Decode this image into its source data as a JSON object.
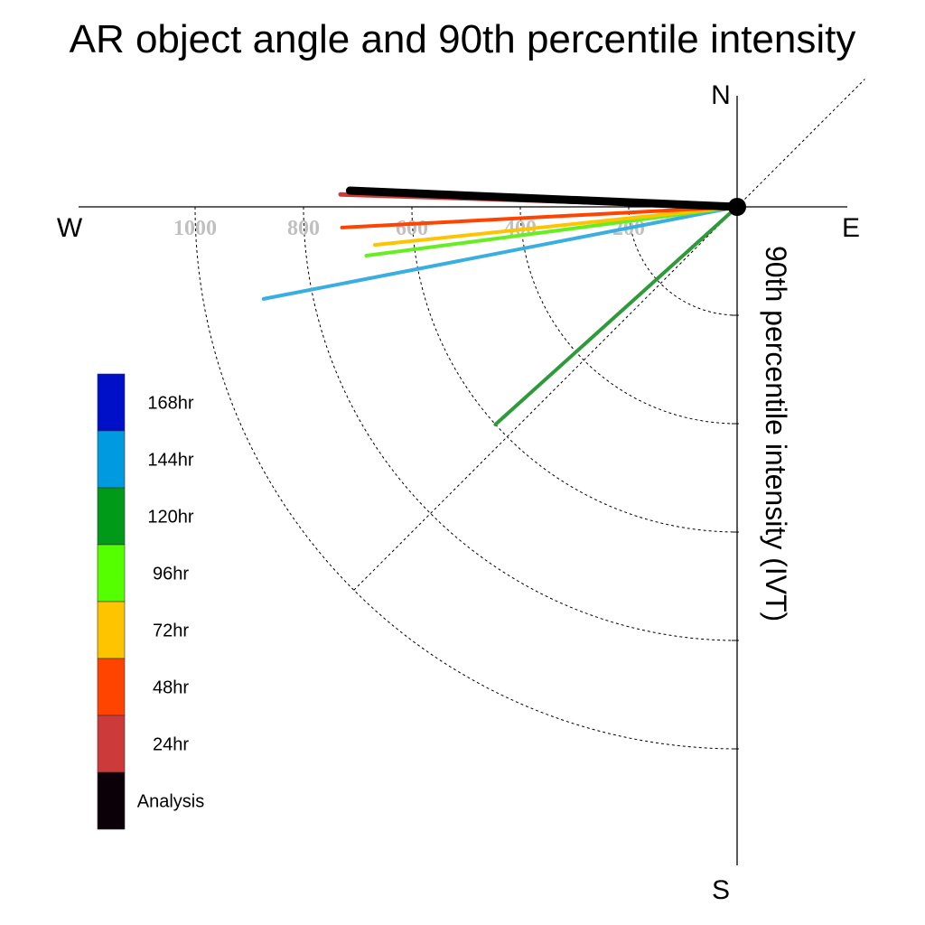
{
  "chart_data": {
    "type": "polar-vector",
    "title": "AR object angle and 90th percentile intensity",
    "ylabel": "90th percentile intensity (IVT)",
    "compass": {
      "north": "N",
      "south": "S",
      "east": "E",
      "west": "W"
    },
    "radial_ticks": [
      200,
      400,
      600,
      800,
      1000
    ],
    "radial_tick_labels": [
      "200",
      "400",
      "600",
      "800",
      "1000"
    ],
    "radial_max": 1200,
    "diagonal_guide_angle_deg": 45,
    "grid": true,
    "legend": {
      "placement": "left",
      "entries": [
        {
          "label": "168hr",
          "color": "#0010c8"
        },
        {
          "label": "144hr",
          "color": "#009ae0"
        },
        {
          "label": "120hr",
          "color": "#009a18"
        },
        {
          "label": "96hr",
          "color": "#55ff00"
        },
        {
          "label": "72hr",
          "color": "#ffc400"
        },
        {
          "label": "48hr",
          "color": "#ff4400"
        },
        {
          "label": "24hr",
          "color": "#cc3a3a"
        },
        {
          "label": "Analysis",
          "color": "#0c0008"
        }
      ]
    },
    "series": [
      {
        "name": "144hr",
        "intensity": 890,
        "angle_deg_below_west": 11.0,
        "color": "#3aaee0",
        "width": 4
      },
      {
        "name": "120hr",
        "intensity": 600,
        "angle_deg_below_west": 42.0,
        "color": "#2f9a3a",
        "width": 4
      },
      {
        "name": "96hr",
        "intensity": 690,
        "angle_deg_below_west": 7.5,
        "color": "#66ee22",
        "width": 4
      },
      {
        "name": "72hr",
        "intensity": 672,
        "angle_deg_below_west": 6.0,
        "color": "#ffc400",
        "width": 4
      },
      {
        "name": "48hr",
        "intensity": 730,
        "angle_deg_below_west": 3.0,
        "color": "#ff4400",
        "width": 4
      },
      {
        "name": "24hr",
        "intensity": 732,
        "angle_deg_below_west": -1.8,
        "color": "#cc3a3a",
        "width": 5
      },
      {
        "name": "Analysis",
        "intensity": 715,
        "angle_deg_below_west": -2.4,
        "color": "#000000",
        "width": 9
      }
    ]
  }
}
